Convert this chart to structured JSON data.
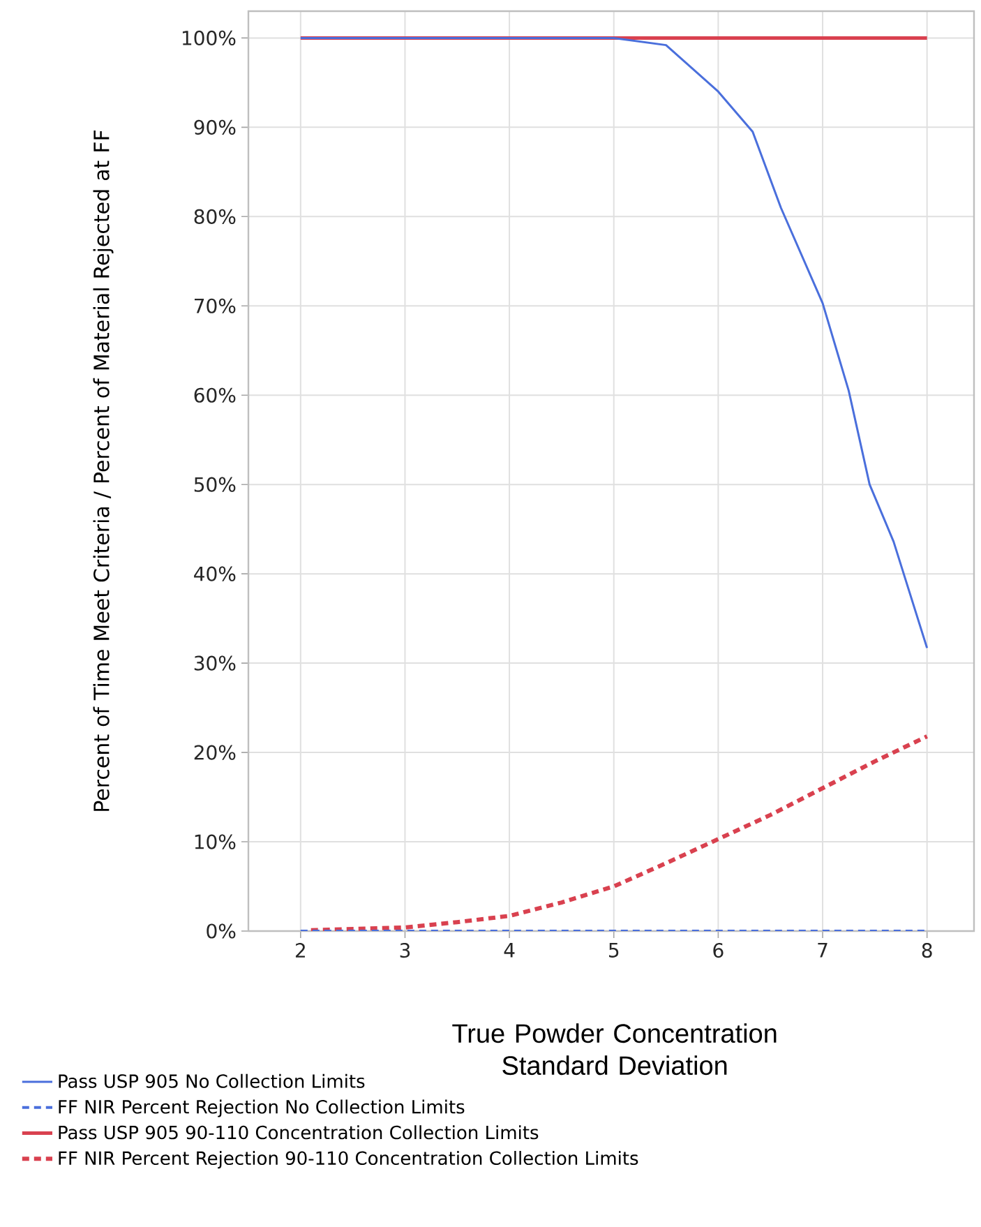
{
  "chart_data": {
    "type": "line",
    "xlabel": "True Powder Concentration Standard Deviation",
    "ylabel": "Percent of Time Meet Criteria / Percent of Material Rejected at FF",
    "xlim": [
      1.5,
      8.45
    ],
    "ylim": [
      0,
      103
    ],
    "xticks": [
      2,
      3,
      4,
      5,
      6,
      7,
      8
    ],
    "yticks": [
      {
        "value": 0,
        "label": "0%"
      },
      {
        "value": 10,
        "label": "10%"
      },
      {
        "value": 20,
        "label": "20%"
      },
      {
        "value": 30,
        "label": "30%"
      },
      {
        "value": 40,
        "label": "40%"
      },
      {
        "value": 50,
        "label": "50%"
      },
      {
        "value": 60,
        "label": "60%"
      },
      {
        "value": 70,
        "label": "70%"
      },
      {
        "value": 80,
        "label": "80%"
      },
      {
        "value": 90,
        "label": "90%"
      },
      {
        "value": 100,
        "label": "100%"
      }
    ],
    "grid": true,
    "legend": "bottom",
    "series": [
      {
        "name": "Pass USP 905 No Collection Limits",
        "color": "#4a6fdc",
        "line_style": "solid",
        "x": [
          2,
          3,
          4,
          5,
          5.5,
          6,
          6.33,
          6.6,
          7,
          7.25,
          7.45,
          7.68,
          8
        ],
        "values": [
          100,
          100,
          100,
          100,
          99.2,
          94,
          89.5,
          81,
          70.3,
          60.5,
          50,
          43.6,
          31.7
        ]
      },
      {
        "name": "FF NIR Percent Rejection No Collection Limits",
        "color": "#4a6fdc",
        "line_style": "dashed",
        "x": [
          2,
          8
        ],
        "values": [
          0,
          0
        ]
      },
      {
        "name": "Pass USP 905 90-110 Concentration Collection Limits",
        "color": "#d9414f",
        "line_style": "solid",
        "x": [
          2,
          8
        ],
        "values": [
          100,
          100
        ]
      },
      {
        "name": "FF NIR Percent Rejection 90-110 Concentration Collection Limits",
        "color": "#d9414f",
        "line_style": "dashed",
        "x": [
          2.1,
          3,
          3.5,
          4,
          4.5,
          5,
          5.5,
          6,
          6.5,
          7,
          7.5,
          8
        ],
        "values": [
          0.1,
          0.4,
          1,
          1.7,
          3.2,
          5,
          7.6,
          10.3,
          13,
          16,
          19,
          21.8
        ]
      }
    ]
  }
}
